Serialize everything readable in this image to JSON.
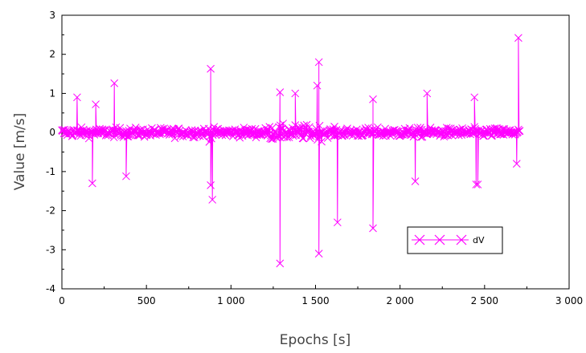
{
  "chart_data": {
    "type": "line",
    "title": "",
    "xlabel": "Epochs [s]",
    "ylabel": "Value [m/s]",
    "xlim": [
      0,
      3000
    ],
    "ylim": [
      -4,
      3
    ],
    "xticks": [
      0,
      500,
      1000,
      1500,
      2000,
      2500,
      3000
    ],
    "xtick_labels": [
      "0",
      "500",
      "1 000",
      "1 500",
      "2 000",
      "2 500",
      "3 000"
    ],
    "yticks": [
      -4,
      -3,
      -2,
      -1,
      0,
      1,
      2,
      3
    ],
    "ytick_labels": [
      "-4",
      "-3",
      "-2",
      "-1",
      "0",
      "1",
      "2",
      "3"
    ],
    "grid": false,
    "legend_position": "bottom-right",
    "series": [
      {
        "name": "dV",
        "color": "#ff00ff",
        "marker": "x",
        "x_range": [
          0,
          2710
        ],
        "typical_band": [
          -0.45,
          0.45
        ],
        "outliers": [
          {
            "x": 90,
            "y": 0.9
          },
          {
            "x": 180,
            "y": -1.3
          },
          {
            "x": 200,
            "y": 0.72
          },
          {
            "x": 310,
            "y": 1.26
          },
          {
            "x": 380,
            "y": -1.12
          },
          {
            "x": 880,
            "y": 1.63
          },
          {
            "x": 880,
            "y": -1.35
          },
          {
            "x": 890,
            "y": -1.72
          },
          {
            "x": 1290,
            "y": 1.03
          },
          {
            "x": 1290,
            "y": -3.35
          },
          {
            "x": 1380,
            "y": 1.0
          },
          {
            "x": 1510,
            "y": 1.2
          },
          {
            "x": 1520,
            "y": 1.8
          },
          {
            "x": 1520,
            "y": -3.1
          },
          {
            "x": 1630,
            "y": -2.3
          },
          {
            "x": 1840,
            "y": 0.85
          },
          {
            "x": 1840,
            "y": -2.45
          },
          {
            "x": 2090,
            "y": -1.25
          },
          {
            "x": 2160,
            "y": 1.0
          },
          {
            "x": 2440,
            "y": 0.9
          },
          {
            "x": 2450,
            "y": -1.33
          },
          {
            "x": 2460,
            "y": -1.33
          },
          {
            "x": 2690,
            "y": -0.8
          },
          {
            "x": 2700,
            "y": 2.42
          }
        ]
      }
    ]
  }
}
